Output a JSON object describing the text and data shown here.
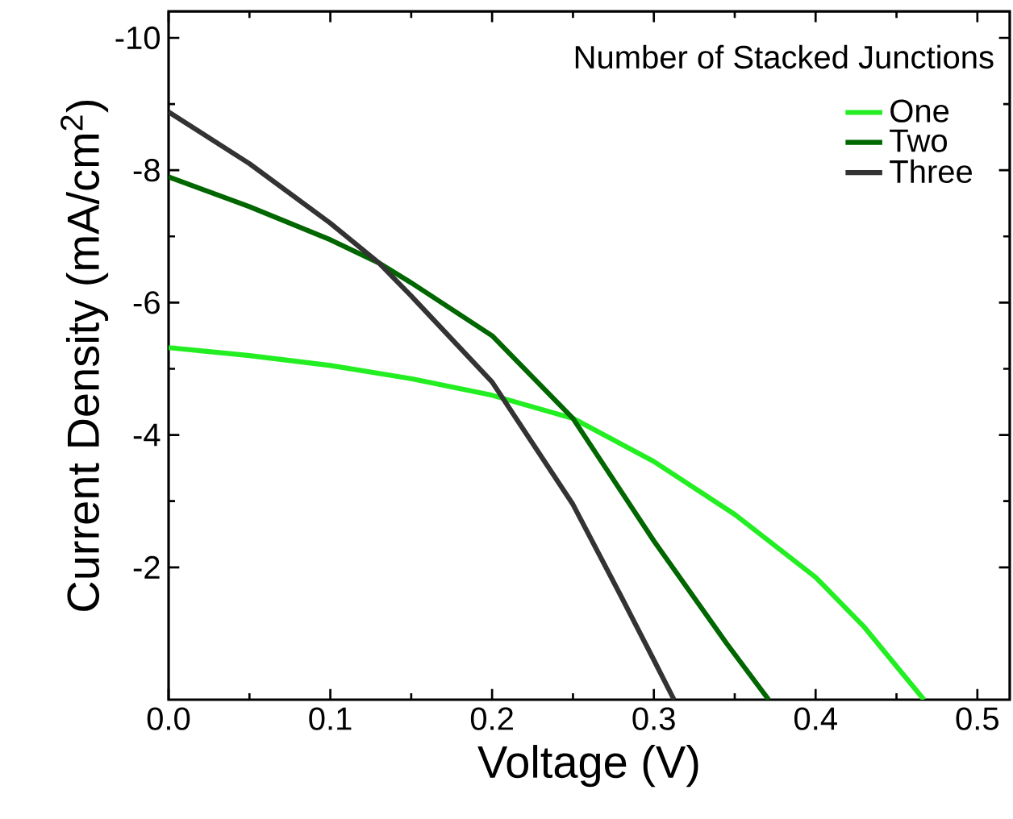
{
  "chart_data": {
    "type": "line",
    "xlabel": "Voltage (V)",
    "ylabel": "Current Density (mA/cm$^{2}$)",
    "legend_title": "Number of Stacked Junctions",
    "xlim": [
      0,
      0.52
    ],
    "ylim": [
      0,
      -10.4
    ],
    "xticks": [
      {
        "value": 0,
        "label": "0.0"
      },
      0.1,
      0.2,
      0.3,
      0.4,
      0.5
    ],
    "yticks": [
      -2,
      -4,
      -6,
      -8,
      -10
    ],
    "grid": false,
    "legend": "top right",
    "marker": "none",
    "line_style": "solid",
    "series": [
      {
        "name": "One",
        "color": "#22ee22",
        "x": [
          0,
          0.05,
          0.1,
          0.15,
          0.2,
          0.25,
          0.3,
          0.35,
          0.4,
          0.43,
          0.467
        ],
        "values": [
          -5.32,
          -5.2,
          -5.05,
          -4.85,
          -4.6,
          -4.25,
          -3.6,
          -2.8,
          -1.85,
          -1.1,
          0
        ]
      },
      {
        "name": "Two",
        "color": "#006600",
        "x": [
          0,
          0.05,
          0.1,
          0.13,
          0.15,
          0.2,
          0.25,
          0.3,
          0.345,
          0.371
        ],
        "values": [
          -7.9,
          -7.45,
          -6.95,
          -6.6,
          -6.3,
          -5.5,
          -4.25,
          -2.4,
          -0.85,
          0
        ]
      },
      {
        "name": "Three",
        "color": "#333333",
        "x": [
          0,
          0.05,
          0.1,
          0.13,
          0.15,
          0.2,
          0.25,
          0.28,
          0.3,
          0.3125
        ],
        "values": [
          -8.88,
          -8.1,
          -7.2,
          -6.6,
          -6.1,
          -4.8,
          -2.95,
          -1.55,
          -0.6,
          0
        ]
      }
    ]
  }
}
